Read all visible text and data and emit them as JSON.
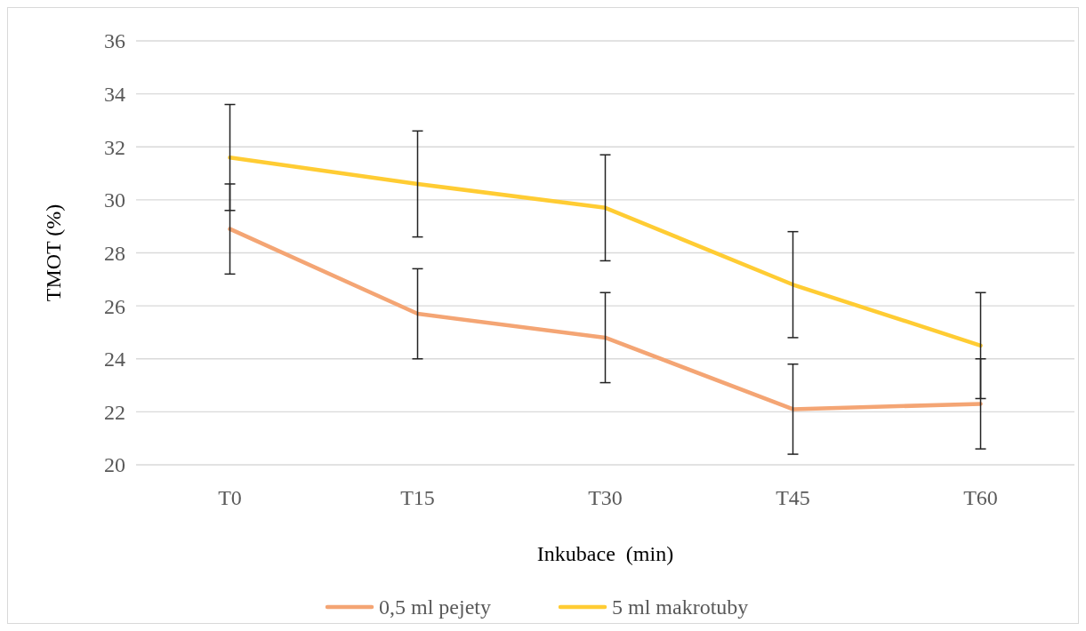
{
  "chart_data": {
    "type": "line",
    "xlabel": "Inkubace  (min)",
    "ylabel": "TMOT (%)",
    "categories": [
      "T0",
      "T15",
      "T30",
      "T45",
      "T60"
    ],
    "series": [
      {
        "name": "0,5 ml pejety",
        "color": "#f4a574",
        "values": [
          28.9,
          25.7,
          24.8,
          22.1,
          22.3
        ],
        "errors": [
          1.7,
          1.7,
          1.7,
          1.7,
          1.7
        ]
      },
      {
        "name": "5 ml makrotuby",
        "color": "#ffcc33",
        "values": [
          31.6,
          30.6,
          29.7,
          26.8,
          24.5
        ],
        "errors": [
          2,
          2,
          2,
          2,
          2
        ]
      }
    ],
    "ylim": [
      20,
      36
    ],
    "yticks": [
      20,
      22,
      24,
      26,
      28,
      30,
      32,
      34,
      36
    ],
    "grid": "y",
    "legend": "bottom",
    "marker": "none",
    "line_style": "solid"
  }
}
